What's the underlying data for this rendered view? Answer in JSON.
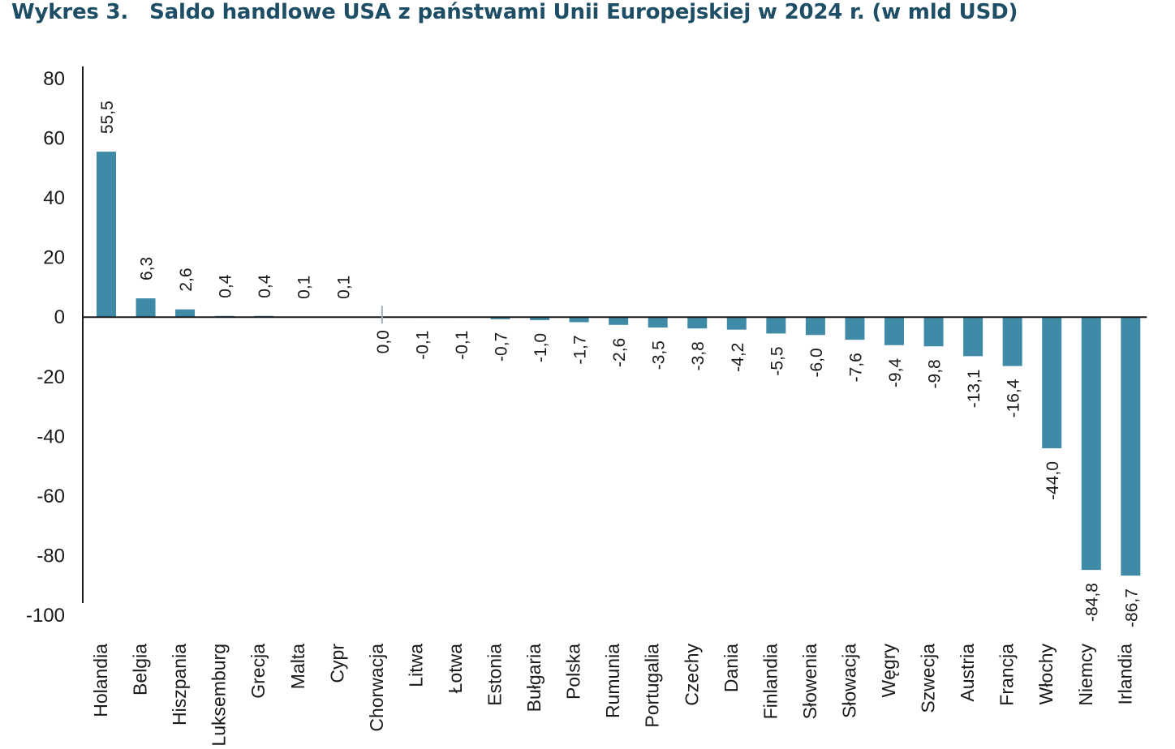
{
  "title": {
    "number": "Wykres 3.",
    "text": "Saldo handlowe USA z państwami Unii Europejskiej w 2024 r. (w mld USD)"
  },
  "chart_data": {
    "type": "bar",
    "title": "Saldo handlowe USA z państwami Unii Europejskiej w 2024 r. (w mld USD)",
    "xlabel": "",
    "ylabel": "",
    "ylim": [
      -100,
      80
    ],
    "yticks": [
      "80",
      "60",
      "40",
      "20",
      "0",
      "-20",
      "-40",
      "-60",
      "-80",
      "-100"
    ],
    "ytick_values": [
      80,
      60,
      40,
      20,
      0,
      -20,
      -40,
      -60,
      -80,
      -100
    ],
    "grid": false,
    "bar_color": "#3f8aa6",
    "categories": [
      "Holandia",
      "Belgia",
      "Hiszpania",
      "Luksemburg",
      "Grecja",
      "Malta",
      "Cypr",
      "Chorwacja",
      "Litwa",
      "Łotwa",
      "Estonia",
      "Bułgaria",
      "Polska",
      "Rumunia",
      "Portugalia",
      "Czechy",
      "Dania",
      "Finlandia",
      "Słowenia",
      "Słowacja",
      "Węgry",
      "Szwecja",
      "Austria",
      "Francja",
      "Włochy",
      "Niemcy",
      "Irlandia"
    ],
    "values": [
      55.5,
      6.3,
      2.6,
      0.4,
      0.4,
      0.1,
      0.1,
      0.0,
      -0.1,
      -0.1,
      -0.7,
      -1.0,
      -1.7,
      -2.6,
      -3.5,
      -3.8,
      -4.2,
      -5.5,
      -6.0,
      -7.6,
      -9.4,
      -9.8,
      -13.1,
      -16.4,
      -44.0,
      -84.8,
      -86.7
    ],
    "value_labels": [
      "55,5",
      "6,3",
      "2,6",
      "0,4",
      "0,4",
      "0,1",
      "0,1",
      "0,0",
      "-0,1",
      "-0,1",
      "-0,7",
      "-1,0",
      "-1,7",
      "-2,6",
      "-3,5",
      "-3,8",
      "-4,2",
      "-5,5",
      "-6,0",
      "-7,6",
      "-9,4",
      "-9,8",
      "-13,1",
      "-16,4",
      "-44,0",
      "-84,8",
      "-86,7"
    ]
  }
}
